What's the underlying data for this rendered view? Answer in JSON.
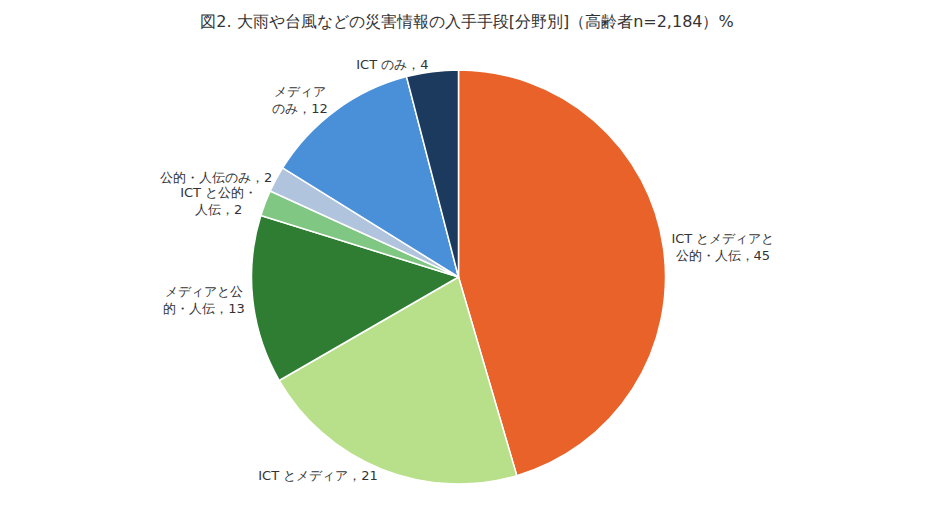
{
  "chart_data": {
    "type": "pie",
    "title": "図2. 大雨や台風などの災害情報の入手手段[分野別]（高齢者n=2,184）%",
    "categories": [
      "ICT とメディアと\n公的・人伝，45",
      "ICT とメディア，21",
      "メディアと公\n的・人伝，13",
      "ICT と公的・\n人伝，2",
      "公的・人伝のみ，2",
      "メディア\nのみ，12",
      "ICT のみ，4"
    ],
    "values": [
      45,
      21,
      13,
      2,
      2,
      12,
      4
    ],
    "colors": [
      "#E8622A",
      "#B8E08A",
      "#2E7D32",
      "#81C784",
      "#B0C4DE",
      "#4A90D9",
      "#1C3A5E"
    ]
  }
}
